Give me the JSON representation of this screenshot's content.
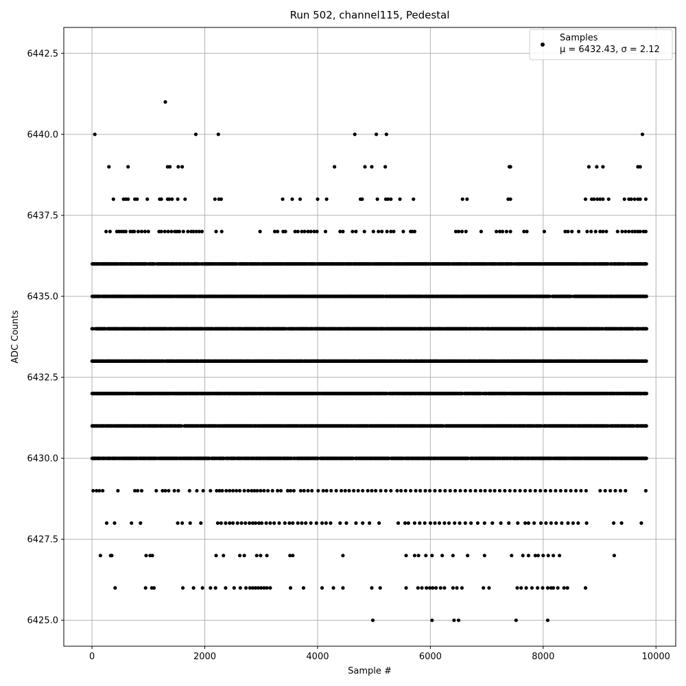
{
  "chart_data": {
    "type": "scatter",
    "title": "Run 502, channel115, Pedestal",
    "xlabel": "Sample #",
    "ylabel": "ADC Counts",
    "xlim": [
      -500,
      10350
    ],
    "ylim": [
      6424.2,
      6443.3
    ],
    "xticks": [
      0,
      2000,
      4000,
      6000,
      8000,
      10000
    ],
    "yticks": [
      6425.0,
      6427.5,
      6430.0,
      6432.5,
      6435.0,
      6437.5,
      6440.0,
      6442.5
    ],
    "xtick_labels": [
      "0",
      "2000",
      "4000",
      "6000",
      "8000",
      "10000"
    ],
    "ytick_labels": [
      "6425.0",
      "6427.5",
      "6430.0",
      "6432.5",
      "6435.0",
      "6437.5",
      "6440.0",
      "6442.5"
    ],
    "grid": true,
    "legend": {
      "position": "top-right",
      "entries": [
        "Samples",
        "μ = 6432.43, σ = 2.12"
      ]
    },
    "marker_color": "#000000",
    "x_range_samples": [
      0,
      9830
    ],
    "levels": [
      {
        "y": 6441,
        "x": [
          1300
        ]
      },
      {
        "y": 6440,
        "x": [
          50,
          1840,
          2240,
          4660,
          5040,
          5220,
          9760
        ]
      },
      {
        "y": 6439,
        "x": [
          300,
          640,
          1340,
          1380,
          1530,
          1600,
          4300,
          4840,
          4960,
          5200,
          7400,
          7420,
          8810,
          8950,
          9060,
          9680,
          9720
        ]
      },
      {
        "y": 6438,
        "x": [
          380,
          560,
          600,
          640,
          760,
          800,
          980,
          1200,
          1230,
          1340,
          1370,
          1420,
          1520,
          1650,
          2180,
          2250,
          2290,
          3380,
          3550,
          3690,
          4000,
          4160,
          4760,
          4790,
          5060,
          5210,
          5250,
          5300,
          5460,
          5700,
          6570,
          6650,
          7380,
          7420,
          8750,
          8860,
          8900,
          8960,
          9010,
          9060,
          9160,
          9440,
          9520,
          9560,
          9620,
          9680,
          9720,
          9820
        ]
      },
      {
        "y": 6437,
        "x": [
          250,
          320,
          440,
          480,
          520,
          560,
          600,
          680,
          720,
          750,
          820,
          880,
          940,
          1000,
          1190,
          1230,
          1290,
          1350,
          1410,
          1470,
          1510,
          1550,
          1620,
          1700,
          1760,
          1800,
          1850,
          1900,
          1950,
          2200,
          2300,
          2980,
          3240,
          3290,
          3390,
          3430,
          3600,
          3650,
          3720,
          3770,
          3830,
          3880,
          3940,
          3990,
          4140,
          4400,
          4450,
          4620,
          4680,
          4830,
          4990,
          5080,
          5140,
          5230,
          5300,
          5350,
          5520,
          5650,
          5680,
          5720,
          6450,
          6500,
          6560,
          6630,
          6900,
          7170,
          7230,
          7280,
          7350,
          7420,
          7660,
          7710,
          8020,
          8390,
          8440,
          8510,
          8630,
          8780,
          8850,
          8930,
          9010,
          9060,
          9120,
          9320,
          9400,
          9460,
          9520,
          9580,
          9630,
          9680,
          9720,
          9780,
          9820
        ]
      }
    ],
    "dense_levels": [
      6436,
      6435,
      6434,
      6433,
      6432,
      6431,
      6430
    ],
    "sparse_levels": [
      {
        "y": 6429,
        "x": [
          20,
          80,
          130,
          190,
          460,
          760,
          810,
          880,
          1140,
          1250,
          1300,
          1360,
          1460,
          1530,
          1730,
          1860,
          1970,
          2100,
          2210,
          2260,
          2310,
          2380,
          2440,
          2500,
          2560,
          2620,
          2700,
          2770,
          2830,
          2880,
          2930,
          2990,
          3050,
          3120,
          3200,
          3290,
          3350,
          3470,
          3520,
          3580,
          3700,
          3760,
          3830,
          3900,
          4010,
          4100,
          4160,
          4240,
          4330,
          4420,
          4490,
          4560,
          4640,
          4720,
          4800,
          4890,
          4960,
          5030,
          5120,
          5210,
          5300,
          5410,
          5480,
          5560,
          5650,
          5740,
          5820,
          5910,
          5990,
          6080,
          6170,
          6260,
          6350,
          6440,
          6530,
          6620,
          6710,
          6800,
          6890,
          6970,
          7060,
          7140,
          7230,
          7320,
          7410,
          7500,
          7590,
          7680,
          7770,
          7860,
          7950,
          8040,
          8130,
          8220,
          8310,
          8400,
          8490,
          8580,
          8670,
          8760,
          9010,
          9100,
          9190,
          9280,
          9370,
          9460,
          9820
        ]
      },
      {
        "y": 6428,
        "x": [
          260,
          400,
          700,
          860,
          1520,
          1600,
          1740,
          1930,
          2230,
          2290,
          2370,
          2440,
          2500,
          2580,
          2650,
          2720,
          2790,
          2850,
          2900,
          2960,
          3010,
          3090,
          3160,
          3230,
          3320,
          3420,
          3500,
          3560,
          3650,
          3720,
          3790,
          3880,
          3980,
          4080,
          4150,
          4230,
          4400,
          4510,
          4680,
          4800,
          4920,
          5090,
          5430,
          5550,
          5610,
          5720,
          5810,
          5900,
          6000,
          6080,
          6160,
          6250,
          6330,
          6430,
          6520,
          6620,
          6720,
          6840,
          6960,
          7100,
          7250,
          7390,
          7550,
          7680,
          7740,
          7840,
          7960,
          8050,
          8140,
          8230,
          8330,
          8440,
          8530,
          8620,
          8770,
          9250,
          9390,
          9740
        ]
      },
      {
        "y": 6427,
        "x": [
          150,
          330,
          350,
          960,
          1030,
          1070,
          2200,
          2330,
          2620,
          2700,
          2920,
          2990,
          3100,
          3510,
          3560,
          4450,
          5570,
          5720,
          5790,
          5920,
          6030,
          6210,
          6400,
          6660,
          6960,
          7440,
          7640,
          7740,
          7860,
          7910,
          8000,
          8090,
          8180,
          8290,
          9260
        ]
      },
      {
        "y": 6426,
        "x": [
          410,
          950,
          1060,
          1100,
          1610,
          1800,
          1960,
          2100,
          2190,
          2370,
          2520,
          2630,
          2730,
          2800,
          2850,
          2900,
          2950,
          3000,
          3050,
          3100,
          3160,
          3520,
          3750,
          4080,
          4280,
          4450,
          4960,
          5110,
          5570,
          5780,
          5850,
          5930,
          5990,
          6040,
          6100,
          6180,
          6250,
          6400,
          6470,
          6560,
          6940,
          7040,
          7540,
          7610,
          7700,
          7800,
          7900,
          7990,
          8080,
          8140,
          8180,
          8260,
          8370,
          8430,
          8750
        ]
      },
      {
        "y": 6425,
        "x": [
          4980,
          6030,
          6420,
          6500,
          7520,
          8080
        ]
      }
    ]
  }
}
